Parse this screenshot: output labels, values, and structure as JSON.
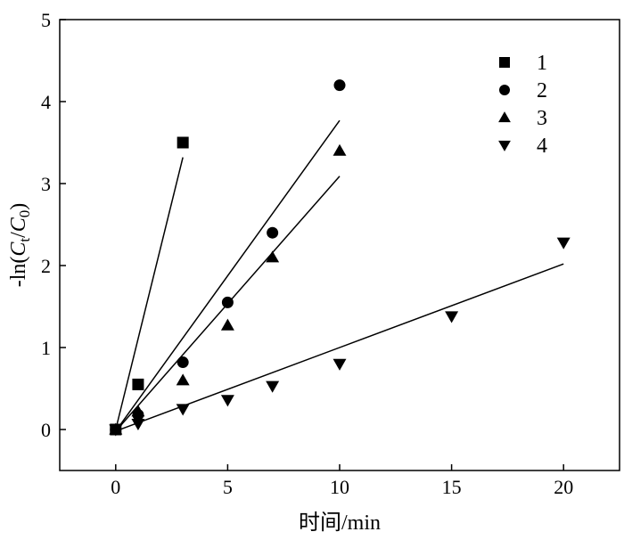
{
  "chart_data": {
    "type": "scatter",
    "xlabel": "时间/min",
    "ylabel_parts": [
      "-ln(",
      "C",
      "t",
      "/",
      "C",
      "0",
      ")"
    ],
    "xlim": [
      -2.5,
      22.5
    ],
    "ylim": [
      -0.5,
      5
    ],
    "xticks": [
      "0",
      "5",
      "10",
      "15",
      "20"
    ],
    "yticks": [
      "0",
      "1",
      "2",
      "3",
      "4",
      "5"
    ],
    "series": [
      {
        "name": "1",
        "marker": "square",
        "points": [
          [
            0,
            0
          ],
          [
            1,
            0.55
          ],
          [
            3,
            3.5
          ]
        ],
        "fit": [
          [
            0,
            0
          ],
          [
            3,
            3.32
          ]
        ]
      },
      {
        "name": "2",
        "marker": "circle",
        "points": [
          [
            0,
            0
          ],
          [
            1,
            0.18
          ],
          [
            3,
            0.82
          ],
          [
            5,
            1.55
          ],
          [
            7,
            2.4
          ],
          [
            10,
            4.2
          ]
        ],
        "fit": [
          [
            0,
            -0.02
          ],
          [
            10,
            3.77
          ]
        ]
      },
      {
        "name": "3",
        "marker": "triangle-up",
        "points": [
          [
            0,
            0
          ],
          [
            1,
            0.22
          ],
          [
            3,
            0.6
          ],
          [
            5,
            1.27
          ],
          [
            7,
            2.1
          ],
          [
            10,
            3.4
          ]
        ],
        "fit": [
          [
            0,
            -0.02
          ],
          [
            10,
            3.09
          ]
        ]
      },
      {
        "name": "4",
        "marker": "triangle-down",
        "points": [
          [
            0,
            0
          ],
          [
            1,
            0.07
          ],
          [
            3,
            0.25
          ],
          [
            5,
            0.36
          ],
          [
            7,
            0.53
          ],
          [
            10,
            0.8
          ],
          [
            15,
            1.38
          ],
          [
            20,
            2.28
          ]
        ],
        "fit": [
          [
            0,
            -0.02
          ],
          [
            20,
            2.02
          ]
        ]
      }
    ],
    "legend_position": "top-right",
    "grid": false
  }
}
